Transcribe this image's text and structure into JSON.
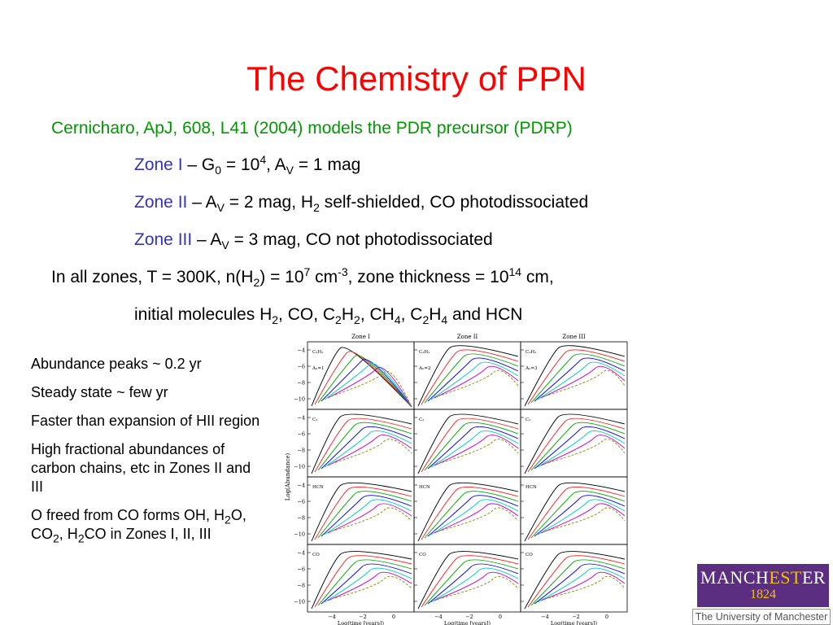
{
  "title": "The Chemistry of PPN",
  "citation": "Cernicharo, ApJ, 608, L41 (2004) models the PDR precursor (PDRP)",
  "zone1": {
    "label": "Zone I",
    "t1": " – G",
    "sub0": "0",
    "t2": " = 10",
    "sup4": "4",
    "t3": ", A",
    "subV": "V",
    "t4": " = 1 mag"
  },
  "zone2": {
    "label": "Zone II",
    "t1": " – A",
    "subV": "V",
    "t2": " = 2 mag, H",
    "sub2": "2",
    "t3": " self-shielded, CO photodissociated"
  },
  "zone3": {
    "label": "Zone III",
    "t1": " – A",
    "subV": "V",
    "t2": " = 3 mag, CO not photodissociated"
  },
  "allzones": {
    "t1": "In all zones, T = 300K, n(H",
    "s1": "2",
    "t2": ") = 10",
    "p1": "7",
    "t3": " cm",
    "p2": "-3",
    "t4": ", zone thickness = 10",
    "p3": "14",
    "t5": " cm,"
  },
  "initial": {
    "t1": "initial molecules H",
    "s1": "2",
    "t2": ", CO, C",
    "s2": "2",
    "t3": "H",
    "s3": "2",
    "t4": ", CH",
    "s4": "4",
    "t5": ", C",
    "s5": "2",
    "t6": "H",
    "s6": "4",
    "t7": " and HCN"
  },
  "bullets": {
    "b1": "Abundance peaks ~ 0.2 yr",
    "b2": "Steady state ~ few yr",
    "b3": "Faster than expansion of HII region",
    "b4": "High fractional abundances of carbon chains, etc in Zones II and III",
    "b5": {
      "t1": "O freed from CO forms OH, H",
      "s1": "2",
      "t2": "O, CO",
      "s2": "2",
      "t3": ", H",
      "s3": "2",
      "t4": "CO in Zones I, II, III"
    }
  },
  "figure": {
    "columns": [
      "Zone I",
      "Zone II",
      "Zone III"
    ],
    "ylabel": "Log(Abundance)",
    "xlabel": "Log(time [years])",
    "yticks": [
      "−4",
      "−6",
      "−8",
      "−10"
    ],
    "xticks": [
      "−4",
      "−2",
      "0"
    ],
    "av_labels": [
      "Aₕ=1",
      "Aₕ=2",
      "Aₕ=3"
    ],
    "row_labels": [
      "C₂H₂",
      "C₂",
      "HCN",
      "CO"
    ]
  },
  "logo": {
    "name_a": "MANCH",
    "name_b": "EST",
    "name_c": "ER",
    "year": "1824",
    "sub": "The University of Manchester"
  },
  "colors": {
    "title": "#ff0000",
    "citation": "#009900",
    "zone": "#3333bb",
    "logo_bg": "#5c2e82",
    "logo_gold": "#f2c200"
  }
}
